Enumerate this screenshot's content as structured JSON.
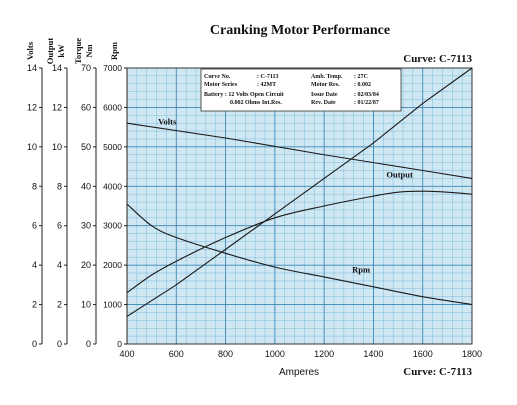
{
  "title": "Cranking Motor Performance",
  "curve_top": "Curve: C-7113",
  "curve_bottom": "Curve: C-7113",
  "xlabel": "Amperes",
  "axes": {
    "volts": {
      "label": "Volts",
      "ticks": [
        "0",
        "2",
        "4",
        "6",
        "8",
        "10",
        "12",
        "14"
      ]
    },
    "output": {
      "label": "Output",
      "unit": "kW",
      "ticks": [
        "0",
        "2",
        "4",
        "6",
        "8",
        "10",
        "12",
        "14"
      ]
    },
    "torque": {
      "label": "Torque",
      "unit": "Nm",
      "ticks": [
        "0",
        "10",
        "20",
        "30",
        "40",
        "50",
        "60",
        "70"
      ]
    },
    "rpm": {
      "label": "Rpm",
      "ticks": [
        "0",
        "1000",
        "2000",
        "3000",
        "4000",
        "5000",
        "6000",
        "7000"
      ]
    }
  },
  "x_ticks": [
    "400",
    "600",
    "800",
    "1000",
    "1200",
    "1400",
    "1600",
    "1800"
  ],
  "infobox": {
    "r1": {
      "k1": "Curve No.",
      "v1": ": C-7113",
      "k2": "Amb. Temp.",
      "v2": ": 27C"
    },
    "r2": {
      "k1": "Motor Series",
      "v1": ": 42MT",
      "k2": "Motor Res.",
      "v2": ": 0.002"
    },
    "r3": {
      "k1": "Battery : 12 Volts Open Circuit",
      "k2": "Issue Date",
      "v2": ": 02/03/84"
    },
    "r4": {
      "k1": "0.002 Ohms Int.Res.",
      "k2": "Rev. Date",
      "v2": ": 01/22/87"
    }
  },
  "colors": {
    "grid": "#5aa8d0",
    "background": "#cfe7f3",
    "curve": "#1a1a1a"
  },
  "chart_data": {
    "type": "line",
    "title": "Cranking Motor Performance",
    "xlabel": "Amperes",
    "xlim": [
      400,
      1800
    ],
    "ylim": {
      "rpm": [
        0,
        7000
      ],
      "torque": [
        0,
        70
      ],
      "volts": [
        0,
        14
      ],
      "output": [
        0,
        14
      ]
    },
    "grid": true,
    "series": [
      {
        "name": "Volts",
        "axis": "volts",
        "x": [
          400,
          800,
          1200,
          1600,
          1800
        ],
        "y": [
          11.2,
          10.45,
          9.6,
          8.8,
          8.4
        ]
      },
      {
        "name": "Torque",
        "axis": "torque",
        "x": [
          400,
          600,
          800,
          1000,
          1200,
          1400,
          1600,
          1800
        ],
        "y": [
          7,
          15,
          24,
          33,
          42,
          51,
          61,
          70
        ]
      },
      {
        "name": "Output",
        "axis": "output",
        "x": [
          400,
          500,
          600,
          800,
          1000,
          1200,
          1400,
          1500,
          1600,
          1700,
          1800
        ],
        "y": [
          2.6,
          3.5,
          4.2,
          5.4,
          6.4,
          7.0,
          7.5,
          7.7,
          7.75,
          7.7,
          7.6
        ]
      },
      {
        "name": "Rpm",
        "axis": "rpm",
        "x": [
          400,
          500,
          600,
          800,
          1000,
          1200,
          1400,
          1600,
          1800
        ],
        "y": [
          3550,
          3000,
          2700,
          2300,
          1950,
          1700,
          1450,
          1200,
          1000
        ]
      }
    ]
  }
}
